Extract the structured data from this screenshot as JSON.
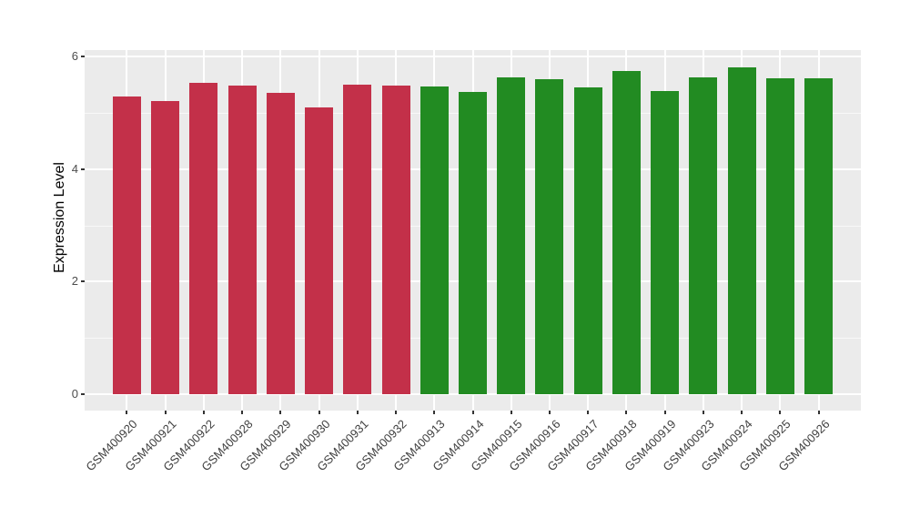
{
  "figure": {
    "background": "#FFFFFF"
  },
  "chart_data": {
    "type": "bar",
    "title": "",
    "xlabel": "",
    "ylabel": "Expression Level",
    "legend_position": "none",
    "grid": "on",
    "panel_bg": "#EBEBEB",
    "grid_major_color": "#FFFFFF",
    "grid_minor_color": "#F5F5F5",
    "axis_text_color": "#4D4D4D",
    "axis_title_color": "#000000",
    "ylim": [
      0,
      6
    ],
    "yticks": [
      0,
      2,
      4,
      6
    ],
    "yticks_minor": [
      1,
      3,
      5
    ],
    "x_label_angle": 45,
    "categories": [
      "GSM400920",
      "GSM400921",
      "GSM400922",
      "GSM400928",
      "GSM400929",
      "GSM400930",
      "GSM400931",
      "GSM400932",
      "GSM400913",
      "GSM400914",
      "GSM400915",
      "GSM400916",
      "GSM400917",
      "GSM400918",
      "GSM400919",
      "GSM400923",
      "GSM400924",
      "GSM400925",
      "GSM400926"
    ],
    "values": [
      5.29,
      5.21,
      5.53,
      5.48,
      5.36,
      5.09,
      5.5,
      5.49,
      5.47,
      5.37,
      5.62,
      5.59,
      5.45,
      5.74,
      5.39,
      5.62,
      5.81,
      5.61,
      5.61
    ],
    "groups": [
      "group-a",
      "group-a",
      "group-a",
      "group-a",
      "group-a",
      "group-a",
      "group-a",
      "group-a",
      "group-b",
      "group-b",
      "group-b",
      "group-b",
      "group-b",
      "group-b",
      "group-b",
      "group-b",
      "group-b",
      "group-b",
      "group-b"
    ],
    "group_colors": {
      "group-a": "#C33049",
      "group-b": "#228B22"
    }
  }
}
